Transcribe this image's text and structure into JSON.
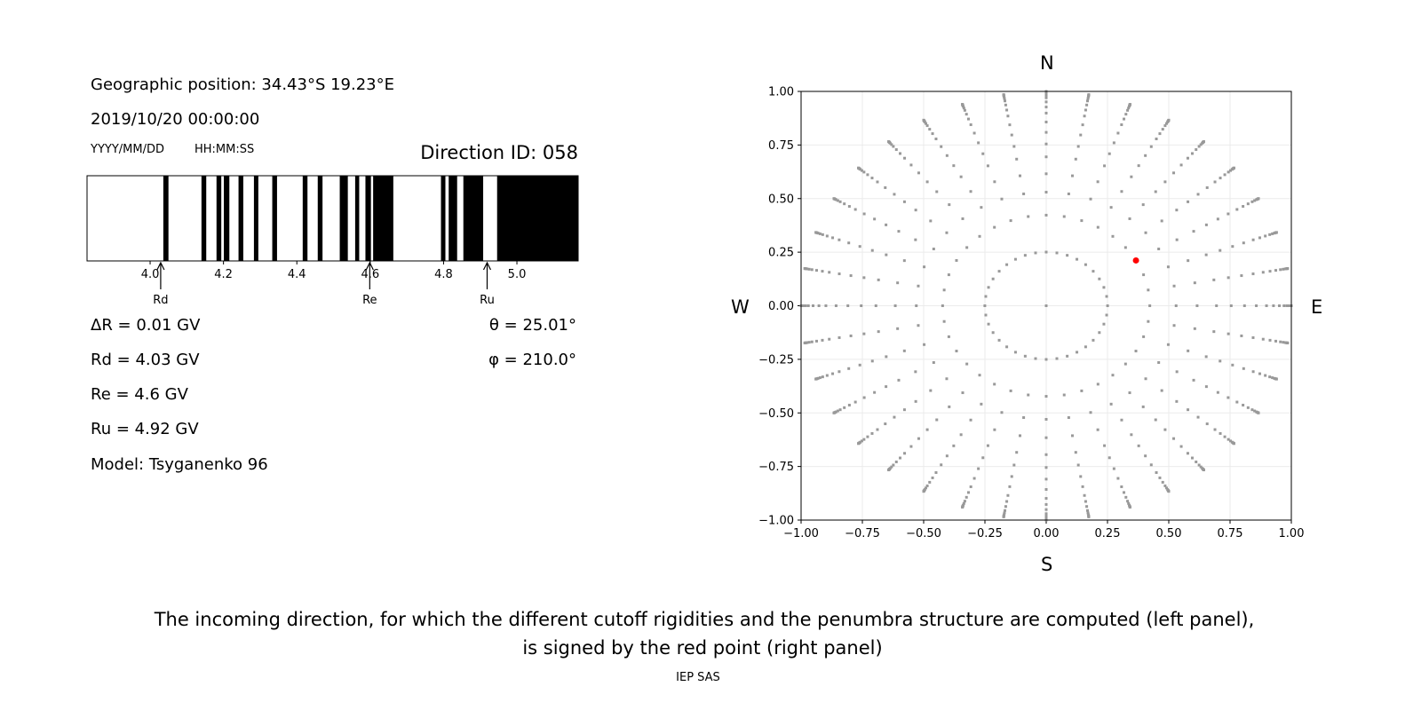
{
  "left_panel": {
    "geo_position": "Geographic position: 34.43°S 19.23°E",
    "datetime": "2019/10/20 00:00:00",
    "date_format": "YYYY/MM/DD",
    "time_format": "HH:MM:SS",
    "direction_id": "Direction ID: 058",
    "delta_r": "ΔR = 0.01 GV",
    "rd": "Rd = 4.03 GV",
    "re": "Re = 4.6 GV",
    "ru": "Ru = 4.92 GV",
    "model": "Model: Tsyganenko 96",
    "theta": "θ = 25.01°",
    "phi": "φ = 210.0°"
  },
  "compass": {
    "n": "N",
    "s": "S",
    "w": "W",
    "e": "E"
  },
  "caption": {
    "line1": "The incoming direction, for which the different cutoff rigidities and the penumbra structure are computed (left panel),",
    "line2": "is signed by the red point (right panel)",
    "credit": "IEP SAS"
  },
  "chart_data": [
    {
      "type": "bar",
      "subtype": "penumbra-strip",
      "xlim": [
        3.828,
        5.167
      ],
      "xticks": [
        4.0,
        4.2,
        4.4,
        4.6,
        4.8,
        5.0
      ],
      "xtick_labels": [
        "4.0",
        "4.2",
        "4.4",
        "4.6",
        "4.8",
        "5.0"
      ],
      "forbidden_intervals_gv": [
        [
          4.036,
          4.05
        ],
        [
          4.14,
          4.153
        ],
        [
          4.181,
          4.194
        ],
        [
          4.201,
          4.216
        ],
        [
          4.241,
          4.254
        ],
        [
          4.283,
          4.295
        ],
        [
          4.333,
          4.346
        ],
        [
          4.416,
          4.429
        ],
        [
          4.457,
          4.47
        ],
        [
          4.517,
          4.539
        ],
        [
          4.559,
          4.57
        ],
        [
          4.587,
          4.602
        ],
        [
          4.608,
          4.663
        ],
        [
          4.793,
          4.805
        ],
        [
          4.814,
          4.837
        ],
        [
          4.854,
          4.908
        ],
        [
          4.946,
          5.167
        ]
      ],
      "colors": {
        "forbidden": "#000000",
        "allowed": "#ffffff"
      },
      "markers": [
        {
          "label": "Rd",
          "value": 4.03
        },
        {
          "label": "Re",
          "value": 4.6
        },
        {
          "label": "Ru",
          "value": 4.92
        }
      ]
    },
    {
      "type": "scatter",
      "xlim": [
        -1,
        1
      ],
      "ylim": [
        -1,
        1
      ],
      "xticks": [
        -1.0,
        -0.75,
        -0.5,
        -0.25,
        0.0,
        0.25,
        0.5,
        0.75,
        1.0
      ],
      "yticks": [
        -1.0,
        -0.75,
        -0.5,
        -0.25,
        0.0,
        0.25,
        0.5,
        0.75,
        1.0
      ],
      "xtick_labels": [
        "−1.00",
        "−0.75",
        "−0.50",
        "−0.25",
        "0.00",
        "0.25",
        "0.50",
        "0.75",
        "1.00"
      ],
      "ytick_labels": [
        "−1.00",
        "−0.75",
        "−0.50",
        "−0.25",
        "0.00",
        "0.25",
        "0.50",
        "0.75",
        "1.00"
      ],
      "grid": true,
      "direction_grid": {
        "zenith_deg": [
          14.5,
          25,
          32,
          38,
          44,
          49,
          54,
          59,
          64,
          68,
          72,
          76,
          79,
          82,
          84,
          86,
          88,
          90
        ],
        "azimuth_step_deg": 10,
        "color": "#999999"
      },
      "selected_direction": {
        "theta_deg": 25.01,
        "phi_deg": 210.0,
        "color": "#ff0000"
      }
    }
  ]
}
